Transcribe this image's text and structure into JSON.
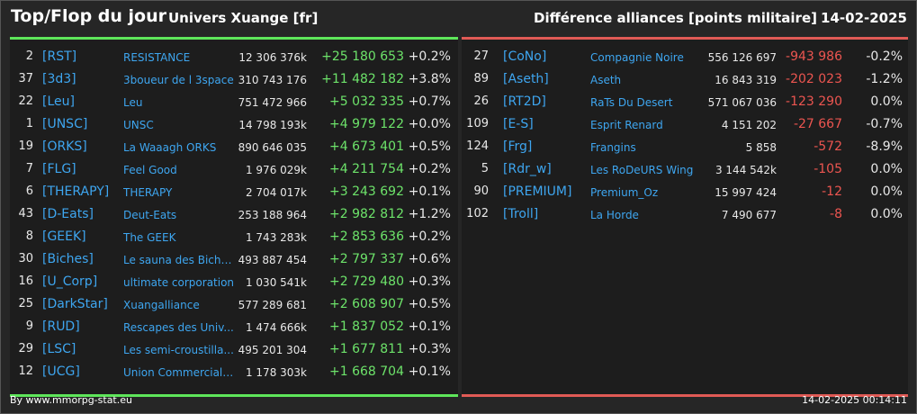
{
  "header": {
    "title": "Top/Flop du jour",
    "subtitle": "Univers Xuange [fr]",
    "right_title": "Différence alliances [points militaire]",
    "date": "14-02-2025"
  },
  "colors": {
    "top_accent": "#5ee65a",
    "flop_accent": "#e05a55",
    "tag": "#3ea6f0"
  },
  "top": [
    {
      "rank": "2",
      "tag": "[RST]",
      "name": "RESISTANCE",
      "points": "12 306 376k",
      "diff": "+25 180 653",
      "pct": "+0.2%"
    },
    {
      "rank": "37",
      "tag": "[3d3]",
      "name": "3boueur de l 3space",
      "points": "310 743 176",
      "diff": "+11 482 182",
      "pct": "+3.8%"
    },
    {
      "rank": "22",
      "tag": "[Leu]",
      "name": "Leu",
      "points": "751 472 966",
      "diff": "+5 032 335",
      "pct": "+0.7%"
    },
    {
      "rank": "1",
      "tag": "[UNSC]",
      "name": "UNSC",
      "points": "14 798 193k",
      "diff": "+4 979 122",
      "pct": "+0.0%"
    },
    {
      "rank": "19",
      "tag": "[ORKS]",
      "name": "La Waaagh ORKS",
      "points": "890 646 035",
      "diff": "+4 673 401",
      "pct": "+0.5%"
    },
    {
      "rank": "7",
      "tag": "[FLG]",
      "name": "Feel Good",
      "points": "1 976 029k",
      "diff": "+4 211 754",
      "pct": "+0.2%"
    },
    {
      "rank": "6",
      "tag": "[THERAPY]",
      "name": "THERAPY",
      "points": "2 704 017k",
      "diff": "+3 243 692",
      "pct": "+0.1%"
    },
    {
      "rank": "43",
      "tag": "[D-Eats]",
      "name": "Deut-Eats",
      "points": "253 188 964",
      "diff": "+2 982 812",
      "pct": "+1.2%"
    },
    {
      "rank": "8",
      "tag": "[GEEK]",
      "name": "The GEEK",
      "points": "1 743 283k",
      "diff": "+2 853 636",
      "pct": "+0.2%"
    },
    {
      "rank": "30",
      "tag": "[Biches]",
      "name": "Le sauna des Biche...",
      "points": "493 887 454",
      "diff": "+2 797 337",
      "pct": "+0.6%"
    },
    {
      "rank": "16",
      "tag": "[U_Corp]",
      "name": "ultimate corporation",
      "points": "1 030 541k",
      "diff": "+2 729 480",
      "pct": "+0.3%"
    },
    {
      "rank": "25",
      "tag": "[DarkStar]",
      "name": "Xuangalliance",
      "points": "577 289 681",
      "diff": "+2 608 907",
      "pct": "+0.5%"
    },
    {
      "rank": "9",
      "tag": "[RUD]",
      "name": "Rescapes des Univ...",
      "points": "1 474 666k",
      "diff": "+1 837 052",
      "pct": "+0.1%"
    },
    {
      "rank": "29",
      "tag": "[LSC]",
      "name": "Les semi-croustilla...",
      "points": "495 201 304",
      "diff": "+1 677 811",
      "pct": "+0.3%"
    },
    {
      "rank": "12",
      "tag": "[UCG]",
      "name": "Union Commerciale...",
      "points": "1 178 303k",
      "diff": "+1 668 704",
      "pct": "+0.1%"
    }
  ],
  "flop": [
    {
      "rank": "27",
      "tag": "[CoNo]",
      "name": "Compagnie Noire",
      "points": "556 126 697",
      "diff": "-943 986",
      "pct": "-0.2%"
    },
    {
      "rank": "89",
      "tag": "[Aseth]",
      "name": "Aseth",
      "points": "16 843 319",
      "diff": "-202 023",
      "pct": "-1.2%"
    },
    {
      "rank": "26",
      "tag": "[RT2D]",
      "name": "RaTs Du Desert",
      "points": "571 067 036",
      "diff": "-123 290",
      "pct": "0.0%"
    },
    {
      "rank": "109",
      "tag": "[E-S]",
      "name": "Esprit Renard",
      "points": "4 151 202",
      "diff": "-27 667",
      "pct": "-0.7%"
    },
    {
      "rank": "124",
      "tag": "[Frg]",
      "name": "Frangins",
      "points": "5 858",
      "diff": "-572",
      "pct": "-8.9%"
    },
    {
      "rank": "5",
      "tag": "[Rdr_w]",
      "name": "Les RoDeURS Wing",
      "points": "3 144 542k",
      "diff": "-105",
      "pct": "0.0%"
    },
    {
      "rank": "90",
      "tag": "[PREMIUM]",
      "name": "Premium_Oz",
      "points": "15 997 424",
      "diff": "-12",
      "pct": "0.0%"
    },
    {
      "rank": "102",
      "tag": "[Troll]",
      "name": "La Horde",
      "points": "7 490 677",
      "diff": "-8",
      "pct": "0.0%"
    }
  ],
  "footer": {
    "credit": "By www.mmorpg-stat.eu",
    "timestamp": "14-02-2025 00:14:11"
  }
}
